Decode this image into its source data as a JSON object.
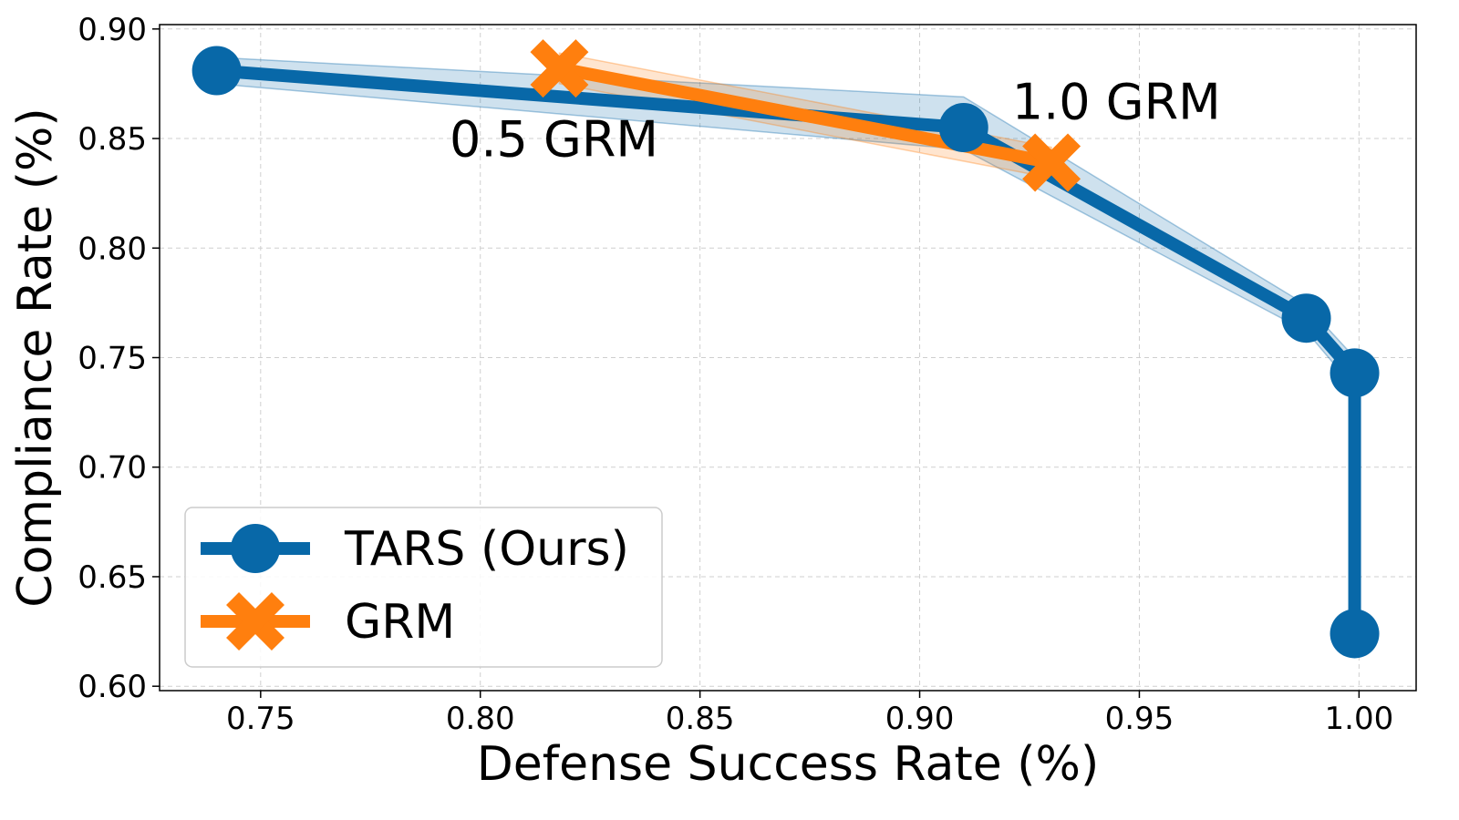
{
  "chart_data": {
    "type": "line",
    "title": "",
    "xlabel": "Defense Success Rate (%)",
    "ylabel": "Compliance Rate (%)",
    "xlim": [
      0.727,
      1.013
    ],
    "ylim": [
      0.598,
      0.902
    ],
    "xticks": [
      0.75,
      0.8,
      0.85,
      0.9,
      0.95,
      1.0
    ],
    "xtick_labels": [
      "0.75",
      "0.80",
      "0.85",
      "0.90",
      "0.95",
      "1.00"
    ],
    "yticks": [
      0.6,
      0.65,
      0.7,
      0.75,
      0.8,
      0.85,
      0.9
    ],
    "ytick_labels": [
      "0.60",
      "0.65",
      "0.70",
      "0.75",
      "0.80",
      "0.85",
      "0.90"
    ],
    "grid": true,
    "legend_position": "lower-left",
    "series": [
      {
        "name": "TARS (Ours)",
        "color": "#0868a8",
        "marker": "circle",
        "x": [
          0.74,
          0.91,
          0.988,
          0.999,
          0.999
        ],
        "y": [
          0.881,
          0.855,
          0.768,
          0.743,
          0.624
        ],
        "band_upper": [
          0.887,
          0.869,
          0.774,
          0.75,
          0.63
        ],
        "band_lower": [
          0.875,
          0.845,
          0.762,
          0.736,
          0.618
        ]
      },
      {
        "name": "GRM",
        "color": "#ff7f0e",
        "marker": "x",
        "x": [
          0.818,
          0.93
        ],
        "y": [
          0.882,
          0.839
        ],
        "band_upper": [
          0.889,
          0.846
        ],
        "band_lower": [
          0.875,
          0.832
        ]
      }
    ],
    "annotations": [
      {
        "text": "0.5 GRM",
        "x": 0.793,
        "y": 0.842
      },
      {
        "text": "1.0 GRM",
        "x": 0.921,
        "y": 0.859
      }
    ]
  }
}
